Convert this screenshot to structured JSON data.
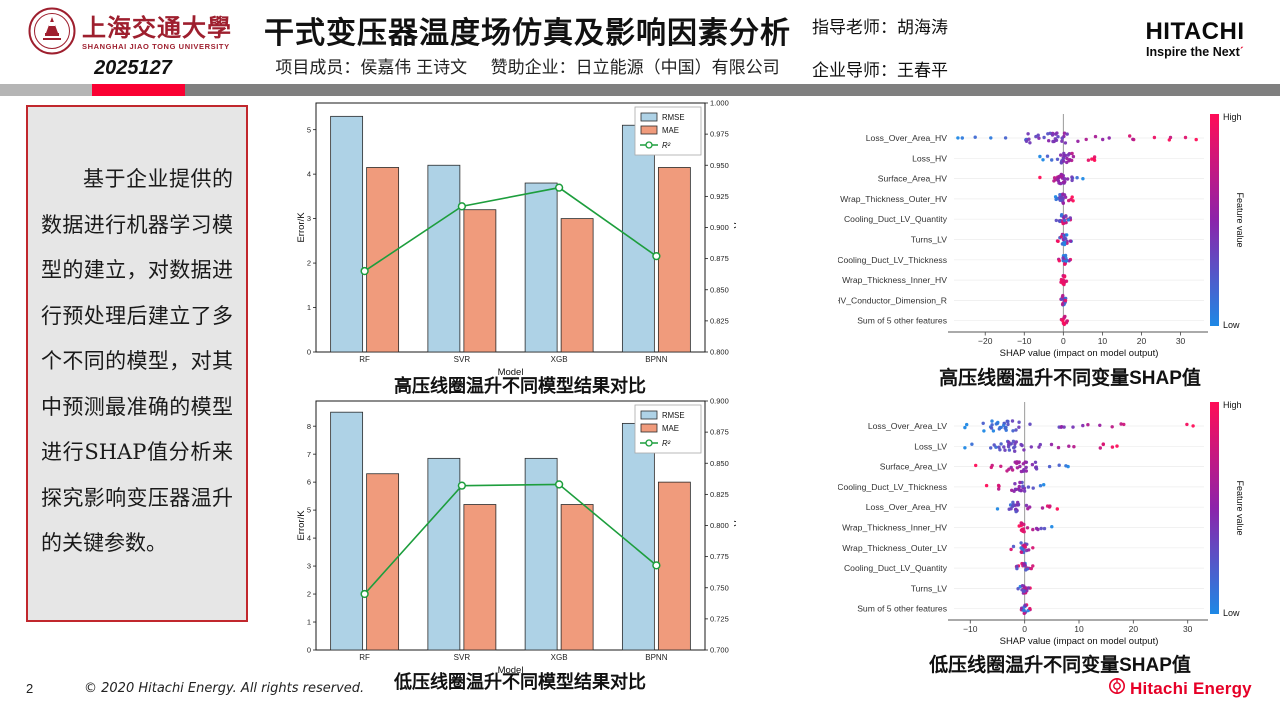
{
  "header": {
    "sjtu": {
      "cn": "上海交通大學",
      "en": "SHANGHAI JIAO TONG UNIVERSITY",
      "code": "2025127",
      "red": "#9e1f2e"
    },
    "title": "干式变压器温度场仿真及影响因素分析",
    "members": "项目成员：侯嘉伟 王诗文",
    "sponsor": "赞助企业：日立能源（中国）有限公司",
    "advisor": "指导老师：胡海涛",
    "mentor": "企业导师：王春平",
    "hitachi": {
      "wordmark": "HITACHI",
      "slogan": "Inspire the Next",
      "accent": "ˊ"
    }
  },
  "divider": {
    "light": "#b5b5b5",
    "red": "#fa0032",
    "dark": "#7f7f7f"
  },
  "summary": {
    "text": "基于企业提供的数据进行机器学习模型的建立，对数据进行预处理后建立了多个不同的模型，对其中预测最准确的模型进行SHAP值分析来探究影响变压器温升的关键参数。"
  },
  "footer": {
    "page": "2",
    "copyright": "© 2020 Hitachi Energy. All rights reserved.",
    "brand": "Hitachi Energy",
    "brand_color": "#e60027"
  },
  "chart_data": [
    {
      "type": "bar+line",
      "title": "高压线圈温升不同模型结果对比",
      "categories": [
        "RF",
        "SVR",
        "XGB",
        "BPNN"
      ],
      "series": [
        {
          "name": "RMSE",
          "style": "bar",
          "color": "#aed2e6",
          "values": [
            5.3,
            4.2,
            3.8,
            5.1
          ]
        },
        {
          "name": "MAE",
          "style": "bar",
          "color": "#f09b7c",
          "values": [
            4.15,
            3.2,
            3.0,
            4.15
          ]
        },
        {
          "name": "R²",
          "style": "line",
          "axis": "right",
          "color": "#1d9e3d",
          "values": [
            0.865,
            0.917,
            0.932,
            0.877
          ]
        }
      ],
      "xlabel": "Model",
      "ylabel": "Error/K",
      "y2label": "R²",
      "ylim": [
        0,
        5.6
      ],
      "yticks": [
        0,
        1,
        2,
        3,
        4,
        5
      ],
      "y2lim": [
        0.8,
        1.0
      ],
      "y2step": 0.025,
      "legend_position": "upper right",
      "grid": false
    },
    {
      "type": "bar+line",
      "title": "低压线圈温升不同模型结果对比",
      "categories": [
        "RF",
        "SVR",
        "XGB",
        "BPNN"
      ],
      "series": [
        {
          "name": "RMSE",
          "style": "bar",
          "color": "#aed2e6",
          "values": [
            8.5,
            6.85,
            6.85,
            8.1
          ]
        },
        {
          "name": "MAE",
          "style": "bar",
          "color": "#f09b7c",
          "values": [
            6.3,
            5.2,
            5.2,
            6.0
          ]
        },
        {
          "name": "R²",
          "style": "line",
          "axis": "right",
          "color": "#1d9e3d",
          "values": [
            0.745,
            0.832,
            0.833,
            0.768
          ]
        }
      ],
      "xlabel": "Model",
      "ylabel": "Error/K",
      "y2label": "R²",
      "ylim": [
        0,
        8.9
      ],
      "yticks": [
        0,
        1,
        2,
        3,
        4,
        5,
        6,
        7,
        8
      ],
      "y2lim": [
        0.7,
        0.9
      ],
      "y2step": 0.025,
      "legend_position": "upper right",
      "grid": false
    },
    {
      "type": "shap",
      "title": "高压线圈温升不同变量SHAP值",
      "xlabel": "SHAP value (impact on model output)",
      "xlim": [
        -28,
        36
      ],
      "xticks": [
        -20,
        -10,
        0,
        10,
        20,
        30
      ],
      "colorbar": {
        "high": "High",
        "low": "Low",
        "label": "Feature value",
        "top": "#ff0d57",
        "mid": "#8c23aa",
        "bottom": "#1e88e5"
      },
      "features": [
        {
          "label": "Loss_Over_Area_HV",
          "n": 46,
          "min": -27,
          "max": 34,
          "c": -3,
          "cw": 8,
          "mode": "pos"
        },
        {
          "label": "Loss_HV",
          "n": 30,
          "min": -6,
          "max": 8,
          "c": 0.5,
          "cw": 2,
          "mode": "pos"
        },
        {
          "label": "Surface_Area_HV",
          "n": 28,
          "min": -6,
          "max": 5,
          "c": -0.5,
          "cw": 2.5,
          "mode": "neg"
        },
        {
          "label": "Wrap_Thickness_Outer_HV",
          "n": 24,
          "min": -2,
          "max": 2.5,
          "c": -0.3,
          "cw": 0.8,
          "mode": "pos"
        },
        {
          "label": "Cooling_Duct_LV_Quantity",
          "n": 22,
          "min": -1.8,
          "max": 1.8,
          "c": 0,
          "cw": 0.8,
          "mode": "mix"
        },
        {
          "label": "Turns_LV",
          "n": 22,
          "min": -1.5,
          "max": 2,
          "c": 0.2,
          "cw": 0.8,
          "mode": "mix"
        },
        {
          "label": "Cooling_Duct_LV_Thickness",
          "n": 20,
          "min": -1.2,
          "max": 1.8,
          "c": 0.3,
          "cw": 0.7,
          "mode": "mix"
        },
        {
          "label": "Wrap_Thickness_Inner_HV",
          "n": 18,
          "min": -0.6,
          "max": 0.8,
          "c": 0,
          "cw": 0.4,
          "mode": "red"
        },
        {
          "label": "HV_Conductor_Dimension_R",
          "n": 16,
          "min": -0.6,
          "max": 0.6,
          "c": 0,
          "cw": 0.4,
          "mode": "mix"
        },
        {
          "label": "Sum of 5 other features",
          "n": 12,
          "min": -0.5,
          "max": 1,
          "c": 0.2,
          "cw": 0.4,
          "mode": "red"
        }
      ]
    },
    {
      "type": "shap",
      "title": "低压线圈温升不同变量SHAP值",
      "xlabel": "SHAP value (impact on model output)",
      "xlim": [
        -13,
        33
      ],
      "xticks": [
        -10,
        0,
        10,
        20,
        30
      ],
      "colorbar": {
        "high": "High",
        "low": "Low",
        "label": "Feature value",
        "top": "#ff0d57",
        "mid": "#8c23aa",
        "bottom": "#1e88e5"
      },
      "features": [
        {
          "label": "Loss_Over_Area_LV",
          "n": 44,
          "min": -11,
          "max": 31,
          "c": -4,
          "cw": 4,
          "mode": "pos"
        },
        {
          "label": "Loss_LV",
          "n": 38,
          "min": -11,
          "max": 17,
          "c": -3,
          "cw": 4,
          "mode": "pos"
        },
        {
          "label": "Surface_Area_LV",
          "n": 32,
          "min": -9,
          "max": 8,
          "c": 0,
          "cw": 4,
          "mode": "neg"
        },
        {
          "label": "Cooling_Duct_LV_Thickness",
          "n": 24,
          "min": -7,
          "max": 3.5,
          "c": -1,
          "cw": 1.5,
          "mode": "neg"
        },
        {
          "label": "Loss_Over_Area_HV",
          "n": 28,
          "min": -5,
          "max": 6,
          "c": -1.5,
          "cw": 1.5,
          "mode": "pos"
        },
        {
          "label": "Wrap_Thickness_Inner_HV",
          "n": 18,
          "min": -1,
          "max": 5,
          "c": -0.3,
          "cw": 0.5,
          "mode": "neg"
        },
        {
          "label": "Wrap_Thickness_Outer_LV",
          "n": 20,
          "min": -2.5,
          "max": 1.5,
          "c": -0.3,
          "cw": 0.7,
          "mode": "mix"
        },
        {
          "label": "Cooling_Duct_LV_Quantity",
          "n": 18,
          "min": -1.5,
          "max": 1.5,
          "c": 0,
          "cw": 0.6,
          "mode": "mix"
        },
        {
          "label": "Turns_LV",
          "n": 20,
          "min": -1.2,
          "max": 1,
          "c": 0,
          "cw": 0.5,
          "mode": "mix"
        },
        {
          "label": "Sum of 5 other features",
          "n": 14,
          "min": -0.6,
          "max": 1,
          "c": 0.2,
          "cw": 0.4,
          "mode": "mix"
        }
      ]
    }
  ]
}
